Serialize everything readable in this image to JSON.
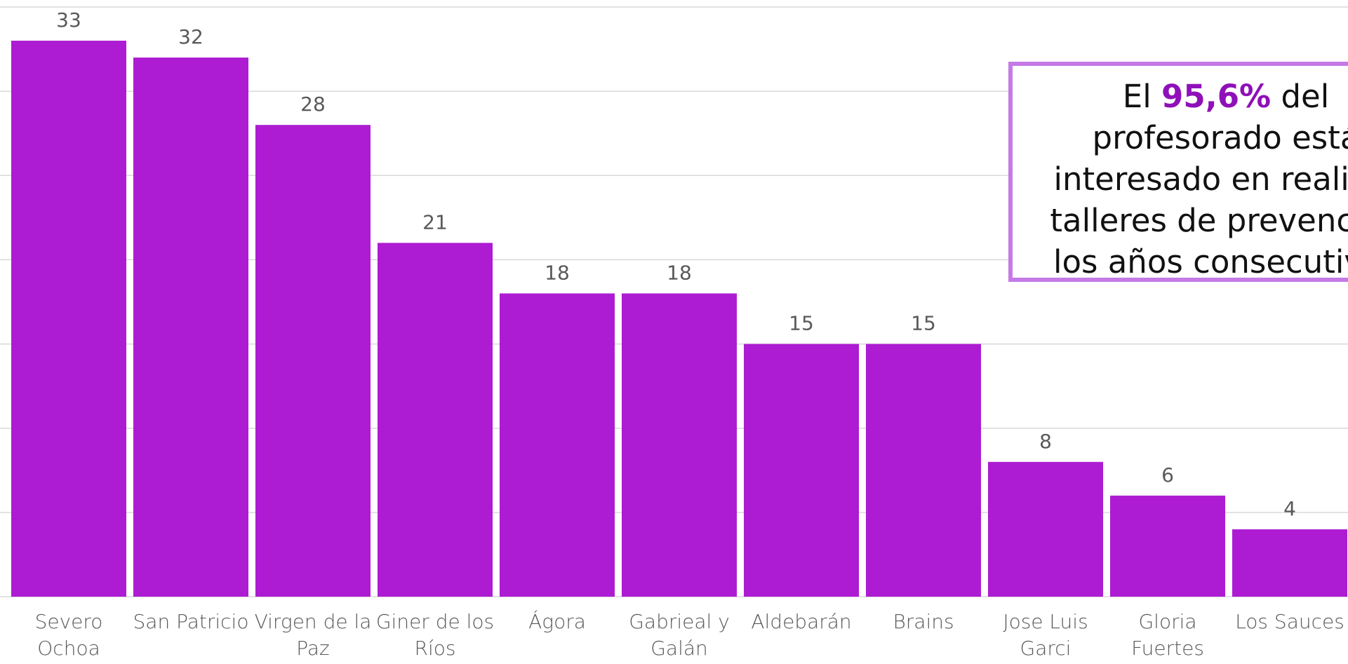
{
  "chart_data": {
    "type": "bar",
    "categories": [
      "Severo Ochoa",
      "San Patricio",
      "Virgen de la Paz",
      "Giner de los Ríos",
      "Ágora",
      "Gabrieal y Galán",
      "Aldebarán",
      "Brains",
      "Jose Luis Garci",
      "Gloria Fuertes",
      "Los Sauces"
    ],
    "values": [
      33,
      32,
      28,
      21,
      18,
      18,
      15,
      15,
      8,
      6,
      4
    ],
    "color": "#ad1cd2",
    "ylim": [
      0,
      35
    ],
    "yticks": [
      0,
      5,
      10,
      15,
      20,
      25,
      30,
      35
    ],
    "grid": true,
    "annotation": {
      "before": "El",
      "highlight": "95,6%",
      "after": "del",
      "lines": [
        "profesorado está",
        "interesado en realizar",
        "talleres de prevención",
        "los años consecutivos"
      ],
      "highlight_color": "#8f10b8",
      "border_color": "#c57ae6"
    }
  }
}
